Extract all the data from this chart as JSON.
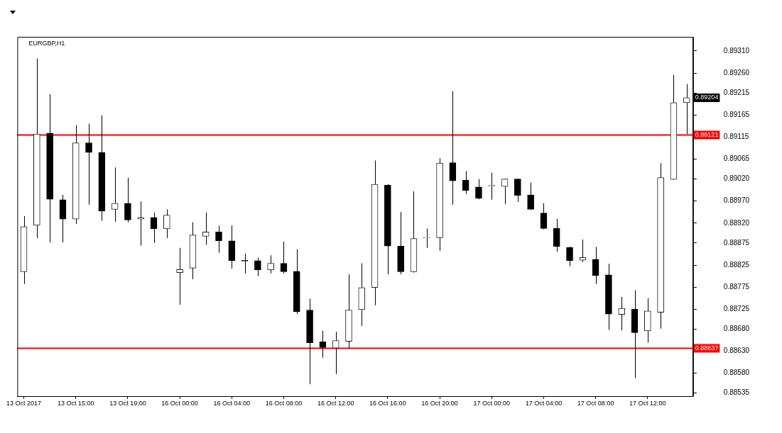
{
  "chart_data": {
    "type": "candlestick",
    "title": "EURGBP,H1",
    "categories": [
      "13 Oct 2017",
      null,
      null,
      null,
      "13 Oct 15:00",
      null,
      null,
      null,
      "13 Oct 19:00",
      null,
      null,
      null,
      "16 Oct 00:00",
      null,
      null,
      null,
      "16 Oct 04:00",
      null,
      null,
      null,
      "16 Oct 08:00",
      null,
      null,
      null,
      "16 Oct 12:00",
      null,
      null,
      null,
      "16 Oct 16:00",
      null,
      null,
      null,
      "16 Oct 20:00",
      null,
      null,
      null,
      "17 Oct 00:00",
      null,
      null,
      null,
      "17 Oct 04:00",
      null,
      null,
      null,
      "17 Oct 08:00",
      null,
      null,
      null,
      "17 Oct 12:00",
      null,
      null,
      null
    ],
    "ohlc": [
      [
        0.8881,
        0.88936,
        0.88782,
        0.88912
      ],
      [
        0.88915,
        0.89293,
        0.88886,
        0.89122
      ],
      [
        0.89124,
        0.89212,
        0.88876,
        0.88974
      ],
      [
        0.88973,
        0.88984,
        0.88876,
        0.88929
      ],
      [
        0.88929,
        0.89142,
        0.88918,
        0.89102
      ],
      [
        0.89102,
        0.89145,
        0.88962,
        0.8908
      ],
      [
        0.8908,
        0.89164,
        0.88925,
        0.88947
      ],
      [
        0.88951,
        0.89046,
        0.88923,
        0.88965
      ],
      [
        0.88965,
        0.89023,
        0.88922,
        0.88927
      ],
      [
        0.88929,
        0.88969,
        0.88869,
        0.88932
      ],
      [
        0.88933,
        0.88944,
        0.88875,
        0.88907
      ],
      [
        0.88907,
        0.88951,
        0.88886,
        0.88938
      ],
      [
        0.88808,
        0.88864,
        0.88735,
        0.88815
      ],
      [
        0.88818,
        0.88922,
        0.88793,
        0.88893
      ],
      [
        0.8889,
        0.88944,
        0.88871,
        0.889
      ],
      [
        0.889,
        0.88914,
        0.88853,
        0.8888
      ],
      [
        0.8888,
        0.88915,
        0.88817,
        0.88835
      ],
      [
        0.88835,
        0.88851,
        0.88806,
        0.88834
      ],
      [
        0.88835,
        0.88842,
        0.888,
        0.88814
      ],
      [
        0.88814,
        0.88847,
        0.88806,
        0.88829
      ],
      [
        0.88829,
        0.88878,
        0.88806,
        0.8881
      ],
      [
        0.88811,
        0.88861,
        0.88714,
        0.88719
      ],
      [
        0.88723,
        0.88749,
        0.88555,
        0.88649
      ],
      [
        0.88651,
        0.88676,
        0.88615,
        0.88638
      ],
      [
        0.88637,
        0.88674,
        0.88578,
        0.88654
      ],
      [
        0.88652,
        0.88804,
        0.88637,
        0.88723
      ],
      [
        0.88724,
        0.88829,
        0.88687,
        0.88774
      ],
      [
        0.88774,
        0.89062,
        0.88734,
        0.89008
      ],
      [
        0.89006,
        0.89008,
        0.88804,
        0.88868
      ],
      [
        0.88868,
        0.88945,
        0.88804,
        0.8881
      ],
      [
        0.8881,
        0.88992,
        0.88808,
        0.88885
      ],
      [
        0.88886,
        0.88908,
        0.88864,
        0.88887
      ],
      [
        0.88887,
        0.89067,
        0.88857,
        0.89056
      ],
      [
        0.89057,
        0.89219,
        0.88962,
        0.89016
      ],
      [
        0.89017,
        0.89038,
        0.88986,
        0.88994
      ],
      [
        0.89002,
        0.8902,
        0.88974,
        0.88976
      ],
      [
        0.89004,
        0.89034,
        0.88973,
        0.89005
      ],
      [
        0.89003,
        0.89021,
        0.88963,
        0.8902
      ],
      [
        0.8902,
        0.89021,
        0.88968,
        0.88983
      ],
      [
        0.88984,
        0.89012,
        0.8895,
        0.88951
      ],
      [
        0.88943,
        0.88965,
        0.88906,
        0.88908
      ],
      [
        0.88908,
        0.8893,
        0.88855,
        0.88867
      ],
      [
        0.88865,
        0.88867,
        0.88822,
        0.88835
      ],
      [
        0.88836,
        0.88883,
        0.88832,
        0.88842
      ],
      [
        0.88838,
        0.88866,
        0.88782,
        0.88801
      ],
      [
        0.88803,
        0.88828,
        0.88678,
        0.88714
      ],
      [
        0.88713,
        0.88753,
        0.88677,
        0.88727
      ],
      [
        0.88725,
        0.88768,
        0.88569,
        0.88672
      ],
      [
        0.88676,
        0.8875,
        0.88649,
        0.88721
      ],
      [
        0.88718,
        0.89056,
        0.88681,
        0.89023
      ],
      [
        0.89019,
        0.89256,
        0.89018,
        0.89193
      ],
      [
        0.89193,
        0.89235,
        0.89122,
        0.89204
      ]
    ],
    "ylim": [
      0.88528,
      0.89342
    ],
    "yticks": [
      {
        "value": 0.88535,
        "label": "0.88535"
      },
      {
        "value": 0.8858,
        "label": "0.88580"
      },
      {
        "value": 0.8863,
        "label": "0.88630"
      },
      {
        "value": 0.8868,
        "label": "0.88680"
      },
      {
        "value": 0.88725,
        "label": "0.88725"
      },
      {
        "value": 0.88775,
        "label": "0.88775"
      },
      {
        "value": 0.88825,
        "label": "0.88825"
      },
      {
        "value": 0.88875,
        "label": "0.88875"
      },
      {
        "value": 0.8892,
        "label": "0.88920"
      },
      {
        "value": 0.8897,
        "label": "0.88970"
      },
      {
        "value": 0.8902,
        "label": "0.89020"
      },
      {
        "value": 0.89065,
        "label": "0.89065"
      },
      {
        "value": 0.89115,
        "label": "0.89115"
      },
      {
        "value": 0.89165,
        "label": "0.89165"
      },
      {
        "value": 0.89215,
        "label": "0.89215"
      },
      {
        "value": 0.8926,
        "label": "0.89260"
      },
      {
        "value": 0.8931,
        "label": "0.89310"
      }
    ],
    "ref_lines": [
      {
        "axis": "y",
        "value": 0.89121,
        "label": "0.89121",
        "color": "#ff0000"
      },
      {
        "axis": "y",
        "value": 0.88637,
        "label": "0.88637",
        "color": "#ff0000"
      }
    ],
    "annotations": [
      "0.89204"
    ]
  }
}
